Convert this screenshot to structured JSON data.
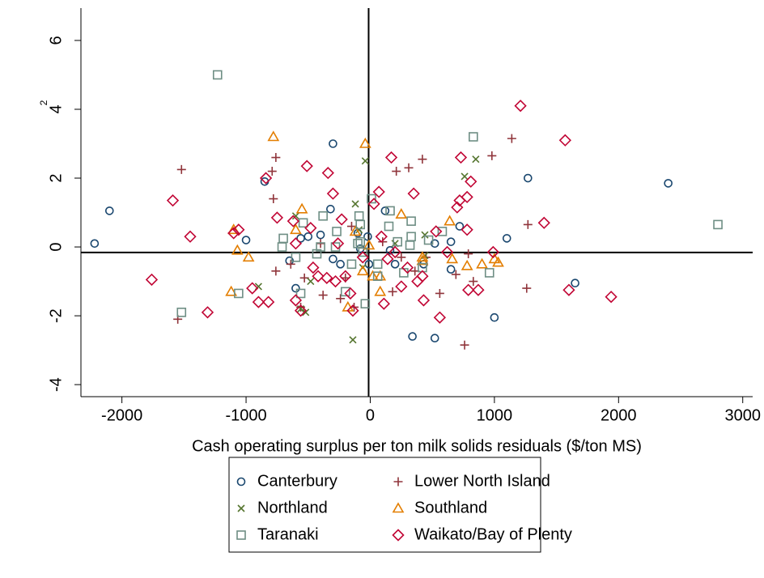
{
  "chart_data": {
    "type": "scatter",
    "x_label": "Cash operating surplus per ton milk solids residuals ($/ton MS)",
    "y_label": "2",
    "xlim": [
      -2330,
      3080
    ],
    "ylim": [
      -4.35,
      6.94
    ],
    "xticks": [
      -2000,
      -1000,
      0,
      1000,
      2000,
      3000
    ],
    "yticks": [
      -4,
      -2,
      0,
      2,
      4,
      6
    ],
    "xline": -13,
    "yline": -0.16,
    "series": [
      {
        "name": "Canterbury",
        "color": "#1a476f",
        "marker": "circle",
        "x": [
          -2220,
          -2100,
          -1000,
          -850,
          -650,
          -600,
          -500,
          -300,
          -320,
          -400,
          -240,
          -100,
          -10,
          -20,
          120,
          160,
          340,
          430,
          520,
          520,
          650,
          720,
          1000,
          1100,
          1270,
          1650,
          2400,
          -560,
          -300,
          650,
          -80,
          200
        ],
        "values": [
          0.1,
          1.05,
          0.2,
          1.9,
          -0.4,
          -1.2,
          0.3,
          3.0,
          1.1,
          0.35,
          -0.5,
          0.4,
          -0.5,
          0.3,
          1.05,
          -0.1,
          -2.6,
          -0.5,
          0.1,
          -2.65,
          0.15,
          0.6,
          -2.05,
          0.25,
          2.0,
          -1.05,
          1.85,
          0.25,
          -0.35,
          -0.65,
          -0.05,
          -0.5
        ]
      },
      {
        "name": "Lower North Island",
        "color": "#90353b",
        "marker": "plus",
        "x": [
          -1520,
          -1550,
          -760,
          -790,
          -780,
          -760,
          -560,
          -380,
          -400,
          -240,
          -130,
          -150,
          210,
          310,
          420,
          180,
          250,
          360,
          560,
          690,
          760,
          830,
          980,
          1140,
          1270,
          1260,
          -640,
          -200,
          450,
          100,
          -530,
          790
        ],
        "values": [
          2.25,
          -2.1,
          2.6,
          2.2,
          1.4,
          -0.7,
          -1.75,
          -1.4,
          0.1,
          -1.5,
          -1.75,
          0.6,
          2.2,
          2.3,
          2.55,
          -1.3,
          -0.3,
          -0.7,
          -1.35,
          -0.8,
          -2.85,
          -1.0,
          2.65,
          3.15,
          0.65,
          -1.2,
          -0.5,
          -0.9,
          -0.3,
          0.15,
          -0.9,
          -0.2
        ]
      },
      {
        "name": "Northland",
        "color": "#55752f",
        "marker": "x",
        "x": [
          -900,
          -520,
          -480,
          -560,
          -120,
          -140,
          -40,
          -600,
          440,
          440,
          850,
          760,
          -60,
          200,
          -90
        ],
        "values": [
          -1.15,
          -1.9,
          -1.0,
          -1.8,
          1.25,
          -2.7,
          2.5,
          0.9,
          0.35,
          -0.25,
          2.55,
          2.05,
          -0.6,
          0.1,
          0.5
        ]
      },
      {
        "name": "Southland",
        "color": "#e37e00",
        "marker": "triangle",
        "x": [
          -780,
          -1100,
          -1070,
          -980,
          -1120,
          -550,
          -600,
          -40,
          -180,
          -120,
          -10,
          80,
          80,
          250,
          420,
          420,
          640,
          660,
          780,
          900,
          1030,
          1000,
          20,
          -60
        ],
        "values": [
          3.2,
          0.5,
          -0.1,
          -0.3,
          -1.3,
          1.1,
          0.5,
          3.0,
          -1.75,
          0.45,
          0.05,
          -1.3,
          -0.85,
          0.95,
          -0.4,
          -0.3,
          0.75,
          -0.35,
          -0.55,
          -0.5,
          -0.45,
          -0.35,
          -0.85,
          -0.7
        ]
      },
      {
        "name": "Taranaki",
        "color": "#6e8e84",
        "marker": "square",
        "x": [
          -1230,
          -1520,
          -1060,
          -700,
          -710,
          -600,
          -540,
          -560,
          -400,
          -430,
          -380,
          -280,
          -270,
          -200,
          -150,
          -100,
          -80,
          -80,
          -60,
          10,
          -40,
          60,
          60,
          160,
          150,
          220,
          270,
          320,
          330,
          330,
          420,
          470,
          580,
          830,
          960,
          2800,
          -90
        ],
        "values": [
          5.0,
          -1.9,
          -1.35,
          0.25,
          0.0,
          -0.3,
          0.7,
          -1.35,
          0.0,
          -0.2,
          0.9,
          0.0,
          0.45,
          -1.3,
          -0.5,
          0.1,
          0.15,
          0.65,
          -0.15,
          1.4,
          -1.65,
          -0.5,
          -0.85,
          1.05,
          0.6,
          0.15,
          -0.75,
          0.05,
          0.75,
          0.3,
          -0.6,
          0.2,
          0.45,
          3.2,
          -0.75,
          0.65,
          0.9
        ]
      },
      {
        "name": "Waikato/Bay of Plenty",
        "color": "#c10534",
        "marker": "diamond",
        "x": [
          -1760,
          -1590,
          -1450,
          -1310,
          -1100,
          -1060,
          -950,
          -900,
          -820,
          -840,
          -750,
          -620,
          -600,
          -560,
          -510,
          -480,
          -460,
          -420,
          -340,
          -300,
          -280,
          -260,
          -230,
          -200,
          -160,
          -140,
          -60,
          30,
          70,
          90,
          110,
          140,
          170,
          200,
          250,
          350,
          380,
          420,
          430,
          530,
          560,
          620,
          700,
          720,
          730,
          780,
          780,
          790,
          810,
          870,
          990,
          1210,
          1400,
          1570,
          1600,
          1940,
          -600,
          -350,
          300
        ],
        "values": [
          -0.95,
          1.35,
          0.3,
          -1.9,
          0.4,
          0.5,
          -1.2,
          -1.6,
          -1.6,
          2.0,
          0.85,
          0.75,
          -1.55,
          -1.85,
          2.35,
          0.55,
          -0.6,
          -0.85,
          2.15,
          1.55,
          -1.0,
          0.1,
          0.8,
          -0.85,
          -1.35,
          -1.85,
          -0.3,
          1.25,
          1.6,
          0.3,
          -1.65,
          -0.35,
          2.6,
          -0.15,
          -1.15,
          1.55,
          -1.0,
          -0.85,
          -1.55,
          0.45,
          -2.05,
          -0.15,
          1.15,
          1.35,
          2.6,
          0.5,
          1.45,
          -1.25,
          1.9,
          -1.25,
          -0.15,
          4.1,
          0.7,
          3.1,
          -1.25,
          -1.45,
          0.1,
          -0.9,
          -0.6
        ]
      }
    ]
  }
}
